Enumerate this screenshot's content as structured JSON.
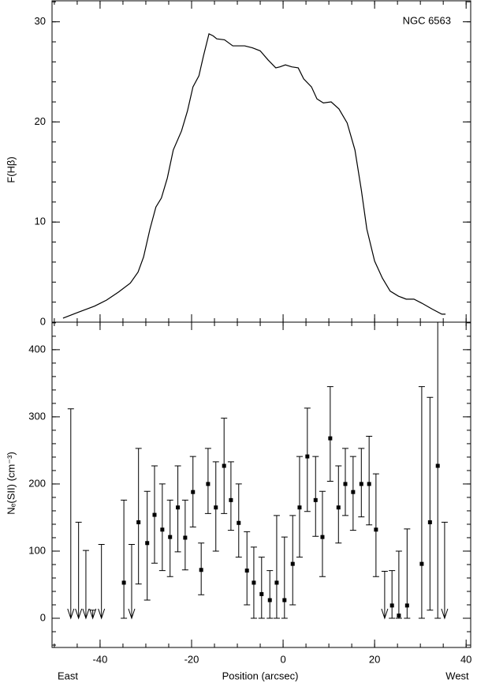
{
  "chart_data": [
    {
      "type": "line",
      "annotation": "NGC 6563",
      "ylabel": "F(Hβ)",
      "color": "#000000",
      "x": [
        -48.1,
        -44.7,
        -41.2,
        -38.6,
        -36,
        -33.4,
        -31.7,
        -30.5,
        -29.1,
        -27.8,
        -26.6,
        -25.3,
        -24,
        -22.2,
        -20.9,
        -19.7,
        -18.4,
        -17.4,
        -16.2,
        -15.3,
        -14.5,
        -12.8,
        -11,
        -8.4,
        -6.7,
        -5,
        -3.3,
        -1.6,
        -0.7,
        0.5,
        1.9,
        3.3,
        4.5,
        6.2,
        7.4,
        8.8,
        10.5,
        12.2,
        14,
        15.7,
        17.1,
        18.3,
        20,
        21.7,
        23.4,
        25.2,
        26.9,
        28.6,
        30.3,
        32.6,
        34.7,
        35.5
      ],
      "values": [
        0.4,
        1.0,
        1.6,
        2.2,
        3,
        3.9,
        5,
        6.5,
        9.3,
        11.5,
        12.4,
        14.4,
        17.2,
        19.1,
        21.1,
        23.5,
        24.6,
        26.6,
        28.8,
        28.6,
        28.3,
        28.2,
        27.6,
        27.6,
        27.4,
        27.1,
        26.2,
        25.4,
        25.5,
        25.7,
        25.5,
        25.4,
        24.3,
        23.5,
        22.3,
        21.9,
        22,
        21.3,
        19.9,
        17.2,
        13.2,
        9.3,
        6.1,
        4.4,
        3.1,
        2.6,
        2.3,
        2.3,
        1.9,
        1.3,
        0.8,
        0.8
      ],
      "xlim": [
        -50.5,
        41
      ],
      "xticks": [
        -40,
        -20,
        0,
        20,
        40
      ],
      "ylim": [
        0,
        32.1
      ],
      "yticks": [
        0,
        10,
        20,
        30
      ]
    },
    {
      "type": "errorbar",
      "ylabel": "Nₑ(SII) (cm⁻³)",
      "xlabel": "Position (arcsec)",
      "left_label": "East",
      "right_label": "West",
      "color": "#000000",
      "x": [
        -34.8,
        -31.6,
        -29.7,
        -28.1,
        -26.4,
        -24.7,
        -23,
        -21.4,
        -19.7,
        -17.9,
        -16.4,
        -14.7,
        -12.9,
        -11.4,
        -9.7,
        -7.9,
        -6.4,
        -4.7,
        -2.9,
        -1.4,
        0.3,
        2.1,
        3.6,
        5.3,
        7.1,
        8.6,
        10.3,
        12.1,
        13.6,
        15.3,
        17.1,
        18.8,
        20.3,
        23.8,
        25.3,
        27.1,
        30.3,
        32.1,
        33.8
      ],
      "values": [
        53,
        143,
        112,
        154,
        132,
        121,
        165,
        120,
        188,
        72,
        200,
        165,
        227,
        176,
        142,
        71,
        53,
        36,
        27,
        53,
        27,
        81,
        165,
        241,
        176,
        121,
        268,
        165,
        200,
        188,
        200,
        200,
        132,
        19,
        4,
        19,
        81,
        143,
        227
      ],
      "err_low": [
        0,
        51,
        27,
        82,
        71,
        62,
        99,
        72,
        136,
        35,
        156,
        100,
        156,
        131,
        91,
        20,
        0,
        0,
        0,
        0,
        0,
        20,
        91,
        159,
        122,
        62,
        204,
        112,
        153,
        131,
        151,
        139,
        62,
        0,
        0,
        0,
        0,
        12,
        0
      ],
      "err_high": [
        176,
        253,
        189,
        227,
        200,
        176,
        227,
        176,
        241,
        112,
        253,
        233,
        298,
        233,
        200,
        129,
        106,
        91,
        71,
        153,
        121,
        153,
        241,
        313,
        241,
        189,
        345,
        227,
        253,
        241,
        253,
        271,
        215,
        71,
        100,
        133,
        345,
        329,
        441
      ],
      "upper_limits": {
        "x": [
          -46.4,
          -44.7,
          -43.1,
          -41.6,
          -39.7,
          -33.1,
          22.2,
          35.3
        ],
        "values": [
          312,
          143,
          101,
          12,
          110,
          110,
          70,
          143
        ]
      },
      "xlim": [
        -50.5,
        41
      ],
      "xticks": [
        -40,
        -20,
        0,
        20,
        40
      ],
      "ylim": [
        -43.5,
        441
      ],
      "yticks": [
        0,
        100,
        200,
        300,
        400
      ]
    }
  ]
}
